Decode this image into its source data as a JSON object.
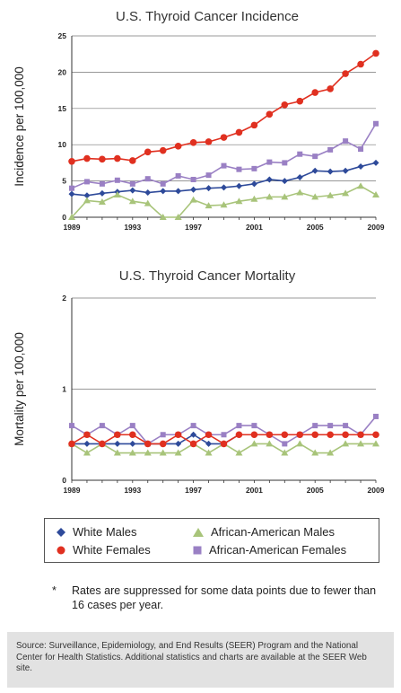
{
  "chart_data": [
    {
      "type": "line",
      "title": "U.S. Thyroid Cancer Incidence",
      "xlabel": "",
      "ylabel": "Incidence per 100,000",
      "ylim": [
        0,
        25
      ],
      "yticks": [
        0,
        5,
        10,
        15,
        20,
        25
      ],
      "xtick_labels": [
        "1989",
        "1993",
        "1997",
        "2001",
        "2005",
        "2009"
      ],
      "grid": "horizontal",
      "x": [
        1989,
        1990,
        1991,
        1992,
        1993,
        1994,
        1995,
        1996,
        1997,
        1998,
        1999,
        2000,
        2001,
        2002,
        2003,
        2004,
        2005,
        2006,
        2007,
        2008,
        2009
      ],
      "series": [
        {
          "name": "White Males",
          "color": "#2e4a9a",
          "marker": "diamond",
          "values": [
            3.2,
            3.0,
            3.3,
            3.5,
            3.7,
            3.4,
            3.6,
            3.6,
            3.8,
            4.0,
            4.1,
            4.3,
            4.6,
            5.2,
            5.0,
            5.5,
            6.4,
            6.3,
            6.4,
            7.0,
            7.5
          ]
        },
        {
          "name": "African-American Males",
          "color": "#a8c47a",
          "marker": "triangle",
          "values": [
            0,
            2.3,
            2.1,
            3.1,
            2.2,
            1.9,
            0,
            0,
            2.4,
            1.6,
            1.7,
            2.2,
            2.5,
            2.8,
            2.8,
            3.4,
            2.8,
            3.0,
            3.3,
            4.3,
            3.1
          ]
        },
        {
          "name": "White Females",
          "color": "#e03020",
          "marker": "circle",
          "values": [
            7.7,
            8.1,
            8.0,
            8.1,
            7.8,
            9.0,
            9.2,
            9.8,
            10.3,
            10.4,
            11.0,
            11.7,
            12.7,
            14.2,
            15.5,
            16.0,
            17.2,
            17.7,
            19.8,
            21.1,
            22.6
          ]
        },
        {
          "name": "African-American Females",
          "color": "#9a80c4",
          "marker": "square",
          "values": [
            4.0,
            4.9,
            4.6,
            5.1,
            4.6,
            5.3,
            4.6,
            5.7,
            5.2,
            5.8,
            7.1,
            6.6,
            6.7,
            7.6,
            7.5,
            8.7,
            8.4,
            9.3,
            10.5,
            9.4,
            12.9
          ]
        }
      ]
    },
    {
      "type": "line",
      "title": "U.S. Thyroid Cancer Mortality",
      "xlabel": "",
      "ylabel": "Mortality per 100,000",
      "ylim": [
        0,
        2
      ],
      "yticks": [
        0,
        1,
        2
      ],
      "xtick_labels": [
        "1989",
        "1993",
        "1997",
        "2001",
        "2005",
        "2009"
      ],
      "grid": "horizontal",
      "x": [
        1989,
        1990,
        1991,
        1992,
        1993,
        1994,
        1995,
        1996,
        1997,
        1998,
        1999,
        2000,
        2001,
        2002,
        2003,
        2004,
        2005,
        2006,
        2007,
        2008,
        2009
      ],
      "series": [
        {
          "name": "African-American Males",
          "color": "#a8c47a",
          "marker": "triangle",
          "values": [
            0.4,
            0.3,
            0.4,
            0.3,
            0.3,
            0.3,
            0.3,
            0.3,
            0.4,
            0.3,
            0.4,
            0.3,
            0.4,
            0.4,
            0.3,
            0.4,
            0.3,
            0.3,
            0.4,
            0.4,
            0.4
          ]
        },
        {
          "name": "White Males",
          "color": "#2e4a9a",
          "marker": "diamond",
          "values": [
            0.4,
            0.4,
            0.4,
            0.4,
            0.4,
            0.4,
            0.4,
            0.4,
            0.5,
            0.4,
            0.4,
            0.5,
            0.5,
            0.5,
            0.5,
            0.5,
            0.5,
            0.5,
            0.5,
            0.5,
            0.5
          ]
        },
        {
          "name": "African-American Females",
          "color": "#9a80c4",
          "marker": "square",
          "values": [
            0.6,
            0.5,
            0.6,
            0.5,
            0.6,
            0.4,
            0.5,
            0.5,
            0.6,
            0.5,
            0.5,
            0.6,
            0.6,
            0.5,
            0.4,
            0.5,
            0.6,
            0.6,
            0.6,
            0.5,
            0.7
          ]
        },
        {
          "name": "White Females",
          "color": "#e03020",
          "marker": "circle",
          "values": [
            0.4,
            0.5,
            0.4,
            0.5,
            0.5,
            0.4,
            0.4,
            0.5,
            0.4,
            0.5,
            0.4,
            0.5,
            0.5,
            0.5,
            0.5,
            0.5,
            0.5,
            0.5,
            0.5,
            0.5,
            0.5
          ]
        }
      ]
    }
  ],
  "legend": {
    "items": [
      {
        "label": "White Males",
        "color": "#2e4a9a",
        "marker": "diamond"
      },
      {
        "label": "African-American Males",
        "color": "#a8c47a",
        "marker": "triangle"
      },
      {
        "label": "White Females",
        "color": "#e03020",
        "marker": "circle"
      },
      {
        "label": "African-American Females",
        "color": "#9a80c4",
        "marker": "square"
      }
    ]
  },
  "footnote": {
    "marker": "*",
    "text": "Rates are suppressed for some data points due to fewer than 16 cases per year."
  },
  "source": {
    "text": "Source: Surveillance, Epidemiology, and End Results (SEER) Program and the National Center for Health Statistics. Additional statistics and charts are available at the SEER Web site."
  }
}
